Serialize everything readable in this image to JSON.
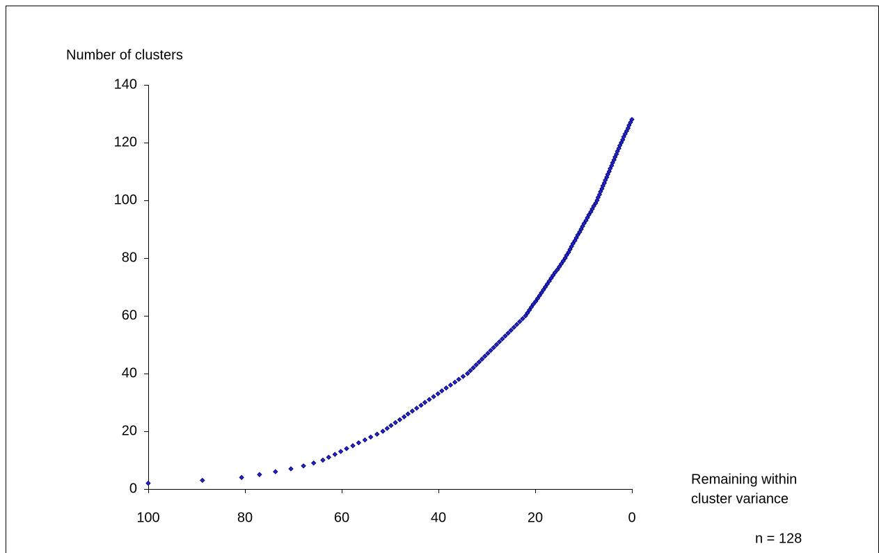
{
  "chart_data": {
    "type": "scatter",
    "y_label": "Number of clusters",
    "x_label": [
      "Remaining within",
      "cluster variance"
    ],
    "annotation": "n = 128",
    "color": "#000080",
    "x": [
      100,
      88.8,
      80.7,
      77,
      73.7,
      70.5,
      67.9,
      65.8,
      63.9,
      62.7,
      61.4,
      60.2,
      59.0,
      57.7,
      56.5,
      55.2,
      54.0,
      52.7,
      51.5,
      50.6,
      49.8,
      48.9,
      48.0,
      47.1,
      46.3,
      45.4,
      44.5,
      43.6,
      42.8,
      41.9,
      41.0,
      40.1,
      39.3,
      38.4,
      37.5,
      36.6,
      35.8,
      34.9,
      34.0,
      33.4,
      32.8,
      32.2,
      31.6,
      31.0,
      30.4,
      29.8,
      29.2,
      28.6,
      28.0,
      27.4,
      26.8,
      26.2,
      25.6,
      25.0,
      24.4,
      23.8,
      23.2,
      22.6,
      22.0,
      21.6,
      21.2,
      20.8,
      20.4,
      19.9,
      19.5,
      19.1,
      18.7,
      18.3,
      17.9,
      17.5,
      17.1,
      16.7,
      16.3,
      15.9,
      15.4,
      15.0,
      14.6,
      14.2,
      13.8,
      13.5,
      13.1,
      12.8,
      12.5,
      12.2,
      11.8,
      11.5,
      11.2,
      10.8,
      10.5,
      10.2,
      9.9,
      9.5,
      9.2,
      8.9,
      8.5,
      8.2,
      7.9,
      7.5,
      7.2,
      7.0,
      6.7,
      6.5,
      6.2,
      6.0,
      5.7,
      5.5,
      5.2,
      5.0,
      4.7,
      4.5,
      4.2,
      4.0,
      3.7,
      3.5,
      3.2,
      3.0,
      2.7,
      2.5,
      2.2,
      1.9,
      1.7,
      1.4,
      1.1,
      0.8,
      0.6,
      0.3,
      0.0
    ],
    "values": [
      2,
      3,
      4,
      5,
      6,
      7,
      8,
      9,
      10,
      11,
      12,
      13,
      14,
      15,
      16,
      17,
      18,
      19,
      20,
      21,
      22,
      23,
      24,
      25,
      26,
      27,
      28,
      29,
      30,
      31,
      32,
      33,
      34,
      35,
      36,
      37,
      38,
      39,
      40,
      41,
      42,
      43,
      44,
      45,
      46,
      47,
      48,
      49,
      50,
      51,
      52,
      53,
      54,
      55,
      56,
      57,
      58,
      59,
      60,
      61,
      62,
      63,
      64,
      65,
      66,
      67,
      68,
      69,
      70,
      71,
      72,
      73,
      74,
      75,
      76,
      77,
      78,
      79,
      80,
      81,
      82,
      83,
      84,
      85,
      86,
      87,
      88,
      89,
      90,
      91,
      92,
      93,
      94,
      95,
      96,
      97,
      98,
      99,
      100,
      101,
      102,
      103,
      104,
      105,
      106,
      107,
      108,
      109,
      110,
      111,
      112,
      113,
      114,
      115,
      116,
      117,
      118,
      119,
      120,
      121,
      122,
      123,
      124,
      125,
      126,
      127,
      128
    ],
    "xlim": [
      100,
      0
    ],
    "xticks": [
      100,
      80,
      60,
      40,
      20,
      0
    ],
    "ylim": [
      0,
      140
    ],
    "yticks": [
      0,
      20,
      40,
      60,
      80,
      100,
      120,
      140
    ]
  }
}
